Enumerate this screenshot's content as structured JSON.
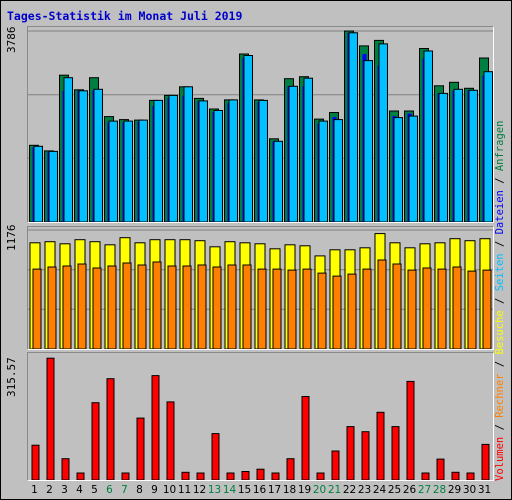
{
  "title": "Tages-Statistik im Monat Juli 2019",
  "colors": {
    "background": "#c0c0c0",
    "title": "#0000cc",
    "anfragen": "#008040",
    "dateien": "#0000ff",
    "seiten": "#00c0ff",
    "besuche": "#ffff00",
    "rechner": "#ff8000",
    "volumen": "#ff0000",
    "weekday_label": "#000000",
    "weekend_label": "#008040"
  },
  "chart_data": [
    {
      "type": "bar",
      "panel": "top",
      "y_max_label": "3786",
      "ylim": [
        0,
        3786
      ],
      "grid": true,
      "categories": [
        "1",
        "2",
        "3",
        "4",
        "5",
        "6",
        "7",
        "8",
        "9",
        "10",
        "11",
        "12",
        "13",
        "14",
        "15",
        "16",
        "17",
        "18",
        "19",
        "20",
        "21",
        "22",
        "23",
        "24",
        "25",
        "26",
        "27",
        "28",
        "29",
        "30",
        "31"
      ],
      "series": [
        {
          "name": "Anfragen",
          "color": "#008040",
          "values": [
            1520,
            1410,
            2910,
            2620,
            2860,
            2090,
            2030,
            2020,
            2410,
            2510,
            2680,
            2450,
            2240,
            2420,
            3330,
            2420,
            1650,
            2840,
            2880,
            2040,
            2170,
            3786,
            3490,
            3600,
            2200,
            2200,
            3440,
            2700,
            2770,
            2650,
            3250
          ]
        },
        {
          "name": "Dateien",
          "color": "#0000ff",
          "values": [
            1480,
            1390,
            2600,
            2600,
            2610,
            1980,
            1980,
            1990,
            2300,
            2460,
            2500,
            2400,
            2180,
            2350,
            3250,
            2380,
            1600,
            2690,
            2690,
            1950,
            2080,
            3750,
            3330,
            3100,
            2100,
            2150,
            3240,
            2550,
            2600,
            2610,
            2900
          ]
        },
        {
          "name": "Seiten",
          "color": "#00c0ff",
          "values": [
            1500,
            1400,
            2860,
            2600,
            2630,
            2000,
            2000,
            2020,
            2410,
            2510,
            2680,
            2400,
            2210,
            2420,
            3300,
            2410,
            1600,
            2690,
            2850,
            2000,
            2030,
            3750,
            3200,
            3530,
            2070,
            2100,
            3390,
            2550,
            2630,
            2610,
            2980
          ]
        }
      ]
    },
    {
      "type": "bar",
      "panel": "middle",
      "y_max_label": "1176",
      "ylim": [
        0,
        1176
      ],
      "grid": true,
      "categories": [
        "1",
        "2",
        "3",
        "4",
        "5",
        "6",
        "7",
        "8",
        "9",
        "10",
        "11",
        "12",
        "13",
        "14",
        "15",
        "16",
        "17",
        "18",
        "19",
        "20",
        "21",
        "22",
        "23",
        "24",
        "25",
        "26",
        "27",
        "28",
        "29",
        "30",
        "31"
      ],
      "series": [
        {
          "name": "Besuche",
          "color": "#ffff00",
          "values": [
            1050,
            1060,
            1040,
            1080,
            1060,
            1030,
            1100,
            1050,
            1080,
            1080,
            1080,
            1070,
            1010,
            1060,
            1050,
            1040,
            990,
            1030,
            1020,
            920,
            980,
            980,
            1000,
            1140,
            1050,
            1000,
            1040,
            1050,
            1090,
            1070,
            1090
          ]
        },
        {
          "name": "Rechner",
          "color": "#ff8000",
          "values": [
            790,
            810,
            820,
            840,
            800,
            820,
            850,
            830,
            860,
            820,
            820,
            830,
            810,
            830,
            830,
            790,
            790,
            780,
            790,
            750,
            720,
            740,
            790,
            880,
            840,
            780,
            800,
            790,
            810,
            770,
            780
          ]
        }
      ]
    },
    {
      "type": "bar",
      "panel": "bottom",
      "y_max_label": "315.57",
      "ylim": [
        0,
        315.57
      ],
      "grid": false,
      "categories": [
        "1",
        "2",
        "3",
        "4",
        "5",
        "6",
        "7",
        "8",
        "9",
        "10",
        "11",
        "12",
        "13",
        "14",
        "15",
        "16",
        "17",
        "18",
        "19",
        "20",
        "21",
        "22",
        "23",
        "24",
        "25",
        "26",
        "27",
        "28",
        "29",
        "30",
        "31"
      ],
      "series": [
        {
          "name": "Volumen",
          "color": "#ff0000",
          "values": [
            90,
            315,
            55,
            18,
            200,
            262,
            18,
            160,
            270,
            202,
            20,
            18,
            120,
            18,
            22,
            28,
            18,
            55,
            216,
            18,
            75,
            138,
            125,
            175,
            138,
            255,
            18,
            54,
            20,
            18,
            92
          ]
        }
      ]
    }
  ],
  "x_labels": [
    {
      "text": "1",
      "weekend": false
    },
    {
      "text": "2",
      "weekend": false
    },
    {
      "text": "3",
      "weekend": false
    },
    {
      "text": "4",
      "weekend": false
    },
    {
      "text": "5",
      "weekend": false
    },
    {
      "text": "6",
      "weekend": true
    },
    {
      "text": "7",
      "weekend": true
    },
    {
      "text": "8",
      "weekend": false
    },
    {
      "text": "9",
      "weekend": false
    },
    {
      "text": "10",
      "weekend": false
    },
    {
      "text": "11",
      "weekend": false
    },
    {
      "text": "12",
      "weekend": false
    },
    {
      "text": "13",
      "weekend": true
    },
    {
      "text": "14",
      "weekend": true
    },
    {
      "text": "15",
      "weekend": false
    },
    {
      "text": "16",
      "weekend": false
    },
    {
      "text": "17",
      "weekend": false
    },
    {
      "text": "18",
      "weekend": false
    },
    {
      "text": "19",
      "weekend": false
    },
    {
      "text": "20",
      "weekend": true
    },
    {
      "text": "21",
      "weekend": true
    },
    {
      "text": "22",
      "weekend": false
    },
    {
      "text": "23",
      "weekend": false
    },
    {
      "text": "24",
      "weekend": false
    },
    {
      "text": "25",
      "weekend": false
    },
    {
      "text": "26",
      "weekend": false
    },
    {
      "text": "27",
      "weekend": true
    },
    {
      "text": "28",
      "weekend": true
    },
    {
      "text": "29",
      "weekend": false
    },
    {
      "text": "30",
      "weekend": false
    },
    {
      "text": "31",
      "weekend": false
    }
  ],
  "legend": {
    "items": [
      {
        "text": "Volumen",
        "color": "#ff0000"
      },
      {
        "text": "Rechner",
        "color": "#ff8000"
      },
      {
        "text": "Besuche",
        "color": "#ffff00"
      },
      {
        "text": "Seiten",
        "color": "#00c0ff"
      },
      {
        "text": "Dateien",
        "color": "#0000ff"
      },
      {
        "text": "Anfragen",
        "color": "#008040"
      }
    ],
    "separator": " / "
  }
}
